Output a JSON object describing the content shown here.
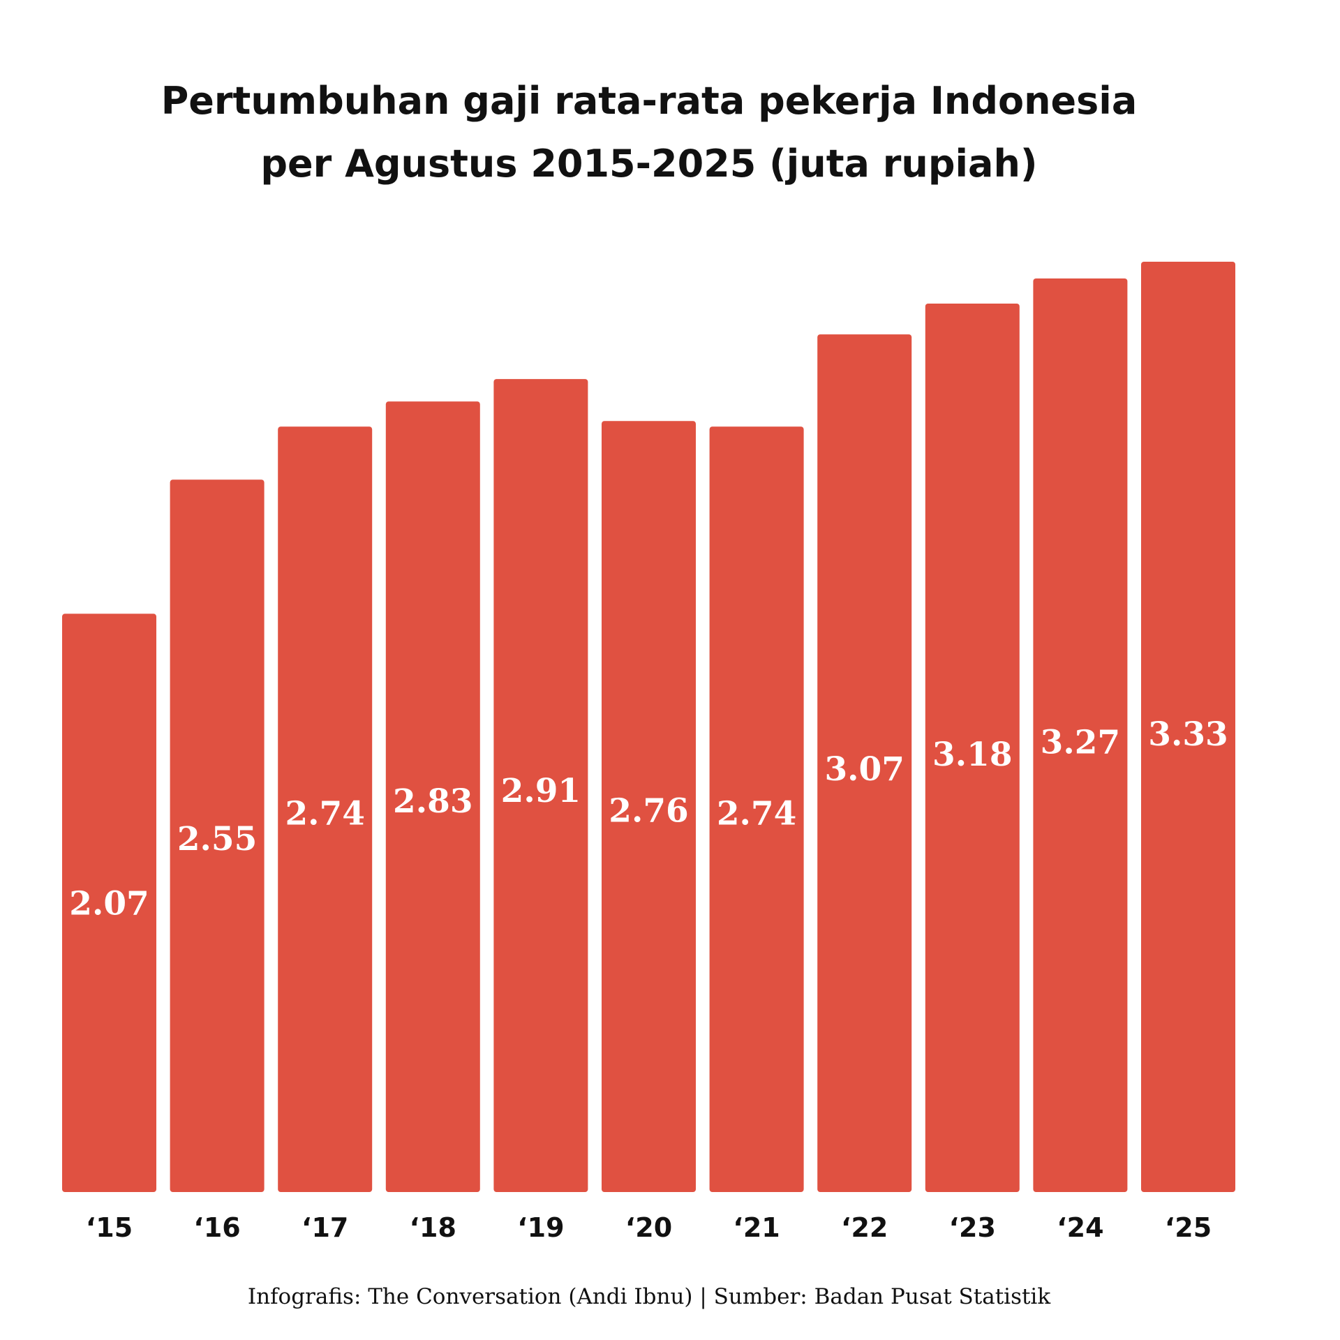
{
  "chart_data": {
    "type": "bar",
    "title_lines": [
      "Pertumbuhan gaji rata-rata pekerja Indonesia",
      "per Agustus 2015-2025 (juta rupiah)"
    ],
    "categories": [
      "‘15",
      "‘16",
      "‘17",
      "‘18",
      "‘19",
      "‘20",
      "‘21",
      "‘22",
      "‘23",
      "‘24",
      "‘25"
    ],
    "values": [
      2.07,
      2.55,
      2.74,
      2.83,
      2.91,
      2.76,
      2.74,
      3.07,
      3.18,
      3.27,
      3.33
    ],
    "value_labels": [
      "2.07",
      "2.55",
      "2.74",
      "2.83",
      "2.91",
      "2.76",
      "2.74",
      "3.07",
      "3.18",
      "3.27",
      "3.33"
    ],
    "ylim": [
      0,
      3.33
    ],
    "grid": false,
    "legend": "none",
    "bar_color": "#e05141",
    "label_color": "#ffffff"
  },
  "footer": "Infografis: The Conversation (Andi Ibnu) | Sumber: Badan Pusat Statistik"
}
